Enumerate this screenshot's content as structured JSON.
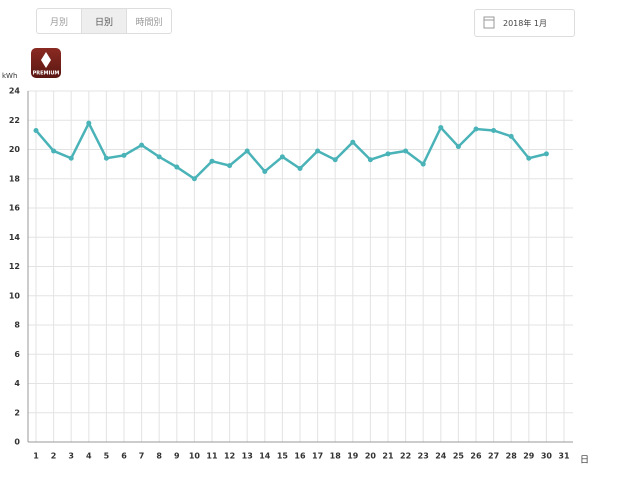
{
  "tabs": [
    "月別",
    "日別",
    "時間別"
  ],
  "date_picker": {
    "label": "2018年  1月"
  },
  "badge": {
    "label": "PREMIUM"
  },
  "chart_data": {
    "type": "line",
    "y_label": "kWh",
    "x_label": "日",
    "categories": [
      "1",
      "2",
      "3",
      "4",
      "5",
      "6",
      "7",
      "8",
      "9",
      "10",
      "11",
      "12",
      "13",
      "14",
      "15",
      "16",
      "17",
      "18",
      "19",
      "20",
      "21",
      "22",
      "23",
      "24",
      "25",
      "26",
      "27",
      "28",
      "29",
      "30",
      "31"
    ],
    "series": [
      {
        "name": "kWh",
        "color": "#4ab3b8",
        "values": [
          21.3,
          19.9,
          19.4,
          21.8,
          19.4,
          19.6,
          20.3,
          19.5,
          18.8,
          18.0,
          19.2,
          18.9,
          19.9,
          18.5,
          19.5,
          18.7,
          19.9,
          19.3,
          20.5,
          19.3,
          19.7,
          19.9,
          19.0,
          21.5,
          20.2,
          21.4,
          21.3,
          20.9,
          19.4,
          19.7,
          null
        ]
      }
    ],
    "ylim": [
      0,
      24
    ],
    "yticks": [
      0,
      2,
      4,
      6,
      8,
      10,
      12,
      14,
      16,
      18,
      20,
      22,
      24
    ],
    "grid": true
  }
}
